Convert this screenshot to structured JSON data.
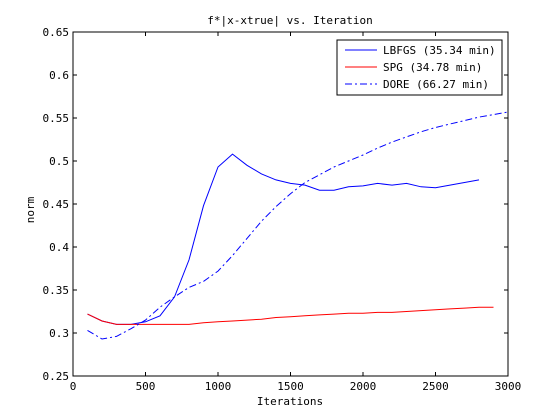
{
  "chart_data": {
    "type": "line",
    "title": "f*|x-xtrue| vs. Iteration",
    "xlabel": "Iterations",
    "ylabel": "norm",
    "xlim": [
      0,
      3000
    ],
    "ylim": [
      0.25,
      0.65
    ],
    "xticks": [
      0,
      500,
      1000,
      1500,
      2000,
      2500,
      3000
    ],
    "yticks": [
      0.25,
      0.3,
      0.35,
      0.4,
      0.45,
      0.5,
      0.55,
      0.6,
      0.65
    ],
    "xtick_labels": [
      "0",
      "500",
      "1000",
      "1500",
      "2000",
      "2500",
      "3000"
    ],
    "ytick_labels": [
      "0.25",
      "0.3",
      "0.35",
      "0.4",
      "0.45",
      "0.5",
      "0.55",
      "0.6",
      "0.65"
    ],
    "grid": false,
    "legend_position": "top-right",
    "series": [
      {
        "name": "LBFGS (35.34 min)",
        "color": "#0000ff",
        "style": "solid",
        "x": [
          100,
          200,
          300,
          400,
          500,
          600,
          700,
          800,
          900,
          1000,
          1100,
          1200,
          1300,
          1400,
          1500,
          1600,
          1700,
          1800,
          1900,
          2000,
          2100,
          2200,
          2300,
          2400,
          2500,
          2600,
          2700,
          2800
        ],
        "y": [
          0.322,
          0.314,
          0.31,
          0.31,
          0.313,
          0.32,
          0.342,
          0.385,
          0.448,
          0.493,
          0.508,
          0.495,
          0.485,
          0.478,
          0.474,
          0.472,
          0.466,
          0.466,
          0.47,
          0.471,
          0.474,
          0.472,
          0.474,
          0.47,
          0.469,
          0.472,
          0.475,
          0.478
        ]
      },
      {
        "name": "SPG (34.78 min)",
        "color": "#ff0000",
        "style": "solid",
        "x": [
          100,
          200,
          300,
          400,
          500,
          600,
          700,
          800,
          900,
          1000,
          1100,
          1200,
          1300,
          1400,
          1500,
          1600,
          1700,
          1800,
          1900,
          2000,
          2100,
          2200,
          2300,
          2400,
          2500,
          2600,
          2700,
          2800,
          2900
        ],
        "y": [
          0.322,
          0.314,
          0.31,
          0.31,
          0.31,
          0.31,
          0.31,
          0.31,
          0.312,
          0.313,
          0.314,
          0.315,
          0.316,
          0.318,
          0.319,
          0.32,
          0.321,
          0.322,
          0.323,
          0.323,
          0.324,
          0.324,
          0.325,
          0.326,
          0.327,
          0.328,
          0.329,
          0.33,
          0.33
        ]
      },
      {
        "name": "DORE (66.27 min)",
        "color": "#0000ff",
        "style": "dashdot",
        "x": [
          100,
          200,
          300,
          400,
          500,
          600,
          700,
          800,
          900,
          1000,
          1100,
          1200,
          1300,
          1400,
          1500,
          1600,
          1700,
          1800,
          1900,
          2000,
          2100,
          2200,
          2300,
          2400,
          2500,
          2600,
          2700,
          2800,
          2900,
          3000
        ],
        "y": [
          0.303,
          0.293,
          0.296,
          0.305,
          0.315,
          0.33,
          0.342,
          0.353,
          0.36,
          0.372,
          0.39,
          0.41,
          0.43,
          0.447,
          0.462,
          0.475,
          0.484,
          0.493,
          0.5,
          0.507,
          0.515,
          0.522,
          0.528,
          0.534,
          0.539,
          0.543,
          0.547,
          0.551,
          0.554,
          0.557
        ]
      }
    ]
  }
}
